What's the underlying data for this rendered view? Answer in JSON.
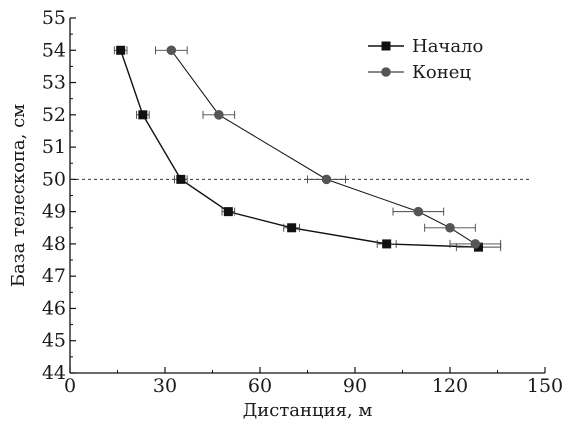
{
  "chart_data": {
    "type": "scatter",
    "title": "",
    "xlabel": "Дистанция,  м",
    "ylabel": "База телескопа,  см",
    "xlim": [
      0,
      150
    ],
    "ylim": [
      44,
      55
    ],
    "x_ticks": [
      0,
      30,
      60,
      90,
      120,
      150
    ],
    "y_ticks": [
      44,
      45,
      46,
      47,
      48,
      49,
      50,
      51,
      52,
      53,
      54,
      55
    ],
    "grid": false,
    "legend_position": "top-right",
    "reference_line": {
      "y": 50,
      "style": "dashed"
    },
    "series": [
      {
        "name": "Начало",
        "marker": "square",
        "color": "#111111",
        "points": [
          {
            "x": 16,
            "y": 54,
            "xerr": 2
          },
          {
            "x": 23,
            "y": 52,
            "xerr": 2
          },
          {
            "x": 35,
            "y": 50,
            "xerr": 2
          },
          {
            "x": 50,
            "y": 49,
            "xerr": 2
          },
          {
            "x": 70,
            "y": 48.5,
            "xerr": 2.5
          },
          {
            "x": 100,
            "y": 48,
            "xerr": 3
          },
          {
            "x": 129,
            "y": 47.9,
            "xerr": 7
          }
        ]
      },
      {
        "name": "Конец",
        "marker": "circle",
        "color": "#555555",
        "points": [
          {
            "x": 32,
            "y": 54,
            "xerr": 5
          },
          {
            "x": 47,
            "y": 52,
            "xerr": 5
          },
          {
            "x": 81,
            "y": 50,
            "xerr": 6
          },
          {
            "x": 110,
            "y": 49,
            "xerr": 8
          },
          {
            "x": 120,
            "y": 48.5,
            "xerr": 8
          },
          {
            "x": 128,
            "y": 48,
            "xerr": 8
          }
        ]
      }
    ]
  }
}
